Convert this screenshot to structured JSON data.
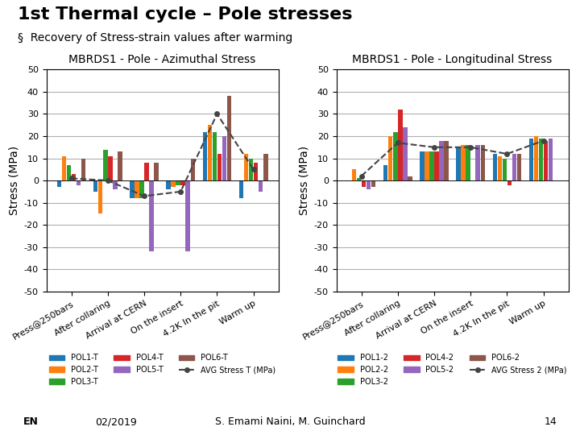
{
  "title": "1st Thermal cycle – Pole stresses",
  "subtitle": "§  Recovery of Stress-strain values after warming",
  "annotations": [
    "EN",
    "02/2019",
    "S. Emami Naini, M. Guinchard",
    "14"
  ],
  "chart_data": [
    {
      "type": "bar",
      "title": "MBRDS1 - Pole - Azimuthal Stress",
      "y_label": "Stress (MPa)",
      "categories": [
        "Press@250bars",
        "After collaring",
        "Arrival at CERN",
        "On the insert",
        "4.2K In the pit",
        "Warm up"
      ],
      "series": [
        {
          "name": "POL1-T",
          "values": [
            -3,
            -5,
            -8,
            -4,
            22,
            -8
          ]
        },
        {
          "name": "POL2-T",
          "values": [
            11,
            -15,
            -8,
            -3,
            25,
            12
          ]
        },
        {
          "name": "POL3-T",
          "values": [
            7,
            14,
            -8,
            -2,
            22,
            10
          ]
        },
        {
          "name": "POL4-T",
          "values": [
            3,
            11,
            8,
            -2,
            12,
            8
          ]
        },
        {
          "name": "POL5-T",
          "values": [
            -2,
            -4,
            -32,
            -32,
            20,
            -5
          ]
        },
        {
          "name": "POL6-T",
          "values": [
            10,
            13,
            8,
            10,
            38,
            12
          ]
        },
        {
          "name": "AVG Stress T (MPa)",
          "type": "line",
          "color": "#444444",
          "line_style": "dashed",
          "marker": "o",
          "values": [
            1,
            0,
            -7,
            -5,
            30,
            5
          ]
        }
      ],
      "ylim": [
        -50,
        50
      ],
      "yticks": [
        -50,
        -40,
        -30,
        -20,
        -10,
        0,
        10,
        20,
        30,
        40,
        50
      ],
      "grid": true,
      "legend": "lower center"
    },
    {
      "type": "bar",
      "title": "MBRDS1 - Pole - Longitudinal Stress",
      "y_label": "Stress (MPa)",
      "categories": [
        "Press@250bars",
        "After collaring",
        "Arrival at CERN",
        "On the insert",
        "4.2K In the pit",
        "Warm up"
      ],
      "series": [
        {
          "name": "POL1-2",
          "values": [
            0,
            7,
            13,
            15,
            12,
            19
          ]
        },
        {
          "name": "POL2-2",
          "values": [
            5,
            20,
            13,
            16,
            11,
            20
          ]
        },
        {
          "name": "POL3-2",
          "values": [
            1,
            22,
            13,
            16,
            10,
            19
          ]
        },
        {
          "name": "POL4-2",
          "values": [
            -3,
            32,
            13,
            0,
            -2,
            18
          ]
        },
        {
          "name": "POL5-2",
          "values": [
            -4,
            24,
            18,
            16,
            12,
            19
          ]
        },
        {
          "name": "POL6-2",
          "values": [
            -3,
            2,
            18,
            16,
            12,
            0
          ]
        },
        {
          "name": "AVG Stress 2 (MPa)",
          "type": "line",
          "color": "#444444",
          "line_style": "dashed",
          "marker": "o",
          "values": [
            2,
            17,
            15,
            15,
            12,
            18
          ]
        }
      ],
      "ylim": [
        -50,
        50
      ],
      "yticks": [
        -50,
        -40,
        -30,
        -20,
        -10,
        0,
        10,
        20,
        30,
        40,
        50
      ],
      "grid": true,
      "legend": "lower center"
    }
  ]
}
